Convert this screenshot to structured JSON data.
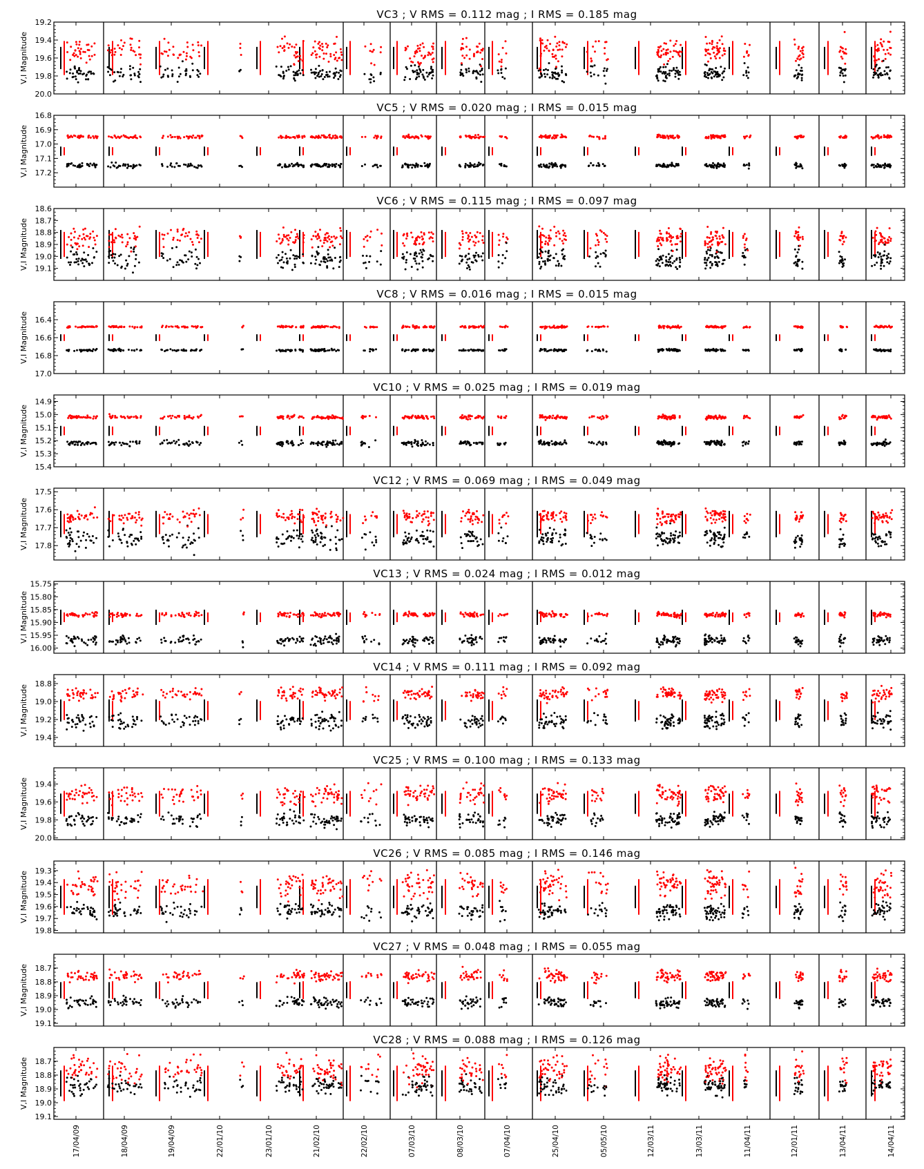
{
  "chart_data": {
    "type": "scatter",
    "x_tick_labels": [
      "17/04/09",
      "18/04/09",
      "19/04/09",
      "22/01/10",
      "23/01/10",
      "21/02/10",
      "22/02/10",
      "07/03/10",
      "08/03/10",
      "07/04/10",
      "25/04/10",
      "05/05/10",
      "12/03/11",
      "13/03/11",
      "11/04/11",
      "12/01/11",
      "13/04/11",
      "14/04/11"
    ],
    "series_colors": {
      "V": "#000000",
      "I": "#ff0000"
    },
    "panels": [
      {
        "title": "VC3 ; V RMS = 0.112 mag ; I RMS = 0.185 mag",
        "ylabel": "V,I Magnitude",
        "yticks": [
          "19.2",
          "19.4",
          "19.6",
          "19.8",
          "20.0"
        ],
        "ylim": [
          20.0,
          19.2
        ],
        "V": {
          "rms": 0.112,
          "mean": 19.77
        },
        "I": {
          "rms": 0.185,
          "mean": 19.52
        }
      },
      {
        "title": "VC5 ; V RMS = 0.020 mag ; I RMS = 0.015 mag",
        "ylabel": "V,I Magnitude",
        "yticks": [
          "16.8",
          "16.9",
          "17.0",
          "17.1",
          "17.2"
        ],
        "ylim": [
          17.3,
          16.8
        ],
        "V": {
          "rms": 0.02,
          "mean": 17.15
        },
        "I": {
          "rms": 0.015,
          "mean": 16.95
        }
      },
      {
        "title": "VC6 ; V RMS = 0.115 mag ; I RMS = 0.097 mag",
        "ylabel": "V,I Magnitude",
        "yticks": [
          "18.6",
          "18.7",
          "18.8",
          "18.9",
          "19.0",
          "19.1"
        ],
        "ylim": [
          19.2,
          18.6
        ],
        "V": {
          "rms": 0.115,
          "mean": 19.02
        },
        "I": {
          "rms": 0.097,
          "mean": 18.85
        }
      },
      {
        "title": "VC8 ; V RMS = 0.016 mag ; I RMS = 0.015 mag",
        "ylabel": "V,I Magnitude",
        "yticks": [
          "16.4",
          "16.6",
          "16.8",
          "17.0"
        ],
        "ylim": [
          17.0,
          16.2
        ],
        "V": {
          "rms": 0.016,
          "mean": 16.74
        },
        "I": {
          "rms": 0.015,
          "mean": 16.48
        }
      },
      {
        "title": "VC10 ; V RMS = 0.025 mag ; I RMS = 0.019 mag",
        "ylabel": "V,I Magnitude",
        "yticks": [
          "14.9",
          "15.0",
          "15.1",
          "15.2",
          "15.3",
          "15.4"
        ],
        "ylim": [
          15.4,
          14.85
        ],
        "V": {
          "rms": 0.025,
          "mean": 15.22
        },
        "I": {
          "rms": 0.019,
          "mean": 15.02
        }
      },
      {
        "title": "VC12 ; V RMS = 0.069 mag ; I RMS = 0.049 mag",
        "ylabel": "V,I Magnitude",
        "yticks": [
          "17.5",
          "17.6",
          "17.7",
          "17.8"
        ],
        "ylim": [
          17.88,
          17.48
        ],
        "V": {
          "rms": 0.069,
          "mean": 17.76
        },
        "I": {
          "rms": 0.049,
          "mean": 17.64
        }
      },
      {
        "title": "VC13 ; V RMS = 0.024 mag ; I RMS = 0.012 mag",
        "ylabel": "V,I Magnitude",
        "yticks": [
          "15.75",
          "15.80",
          "15.85",
          "15.90",
          "15.95",
          "16.00"
        ],
        "ylim": [
          16.02,
          15.74
        ],
        "V": {
          "rms": 0.024,
          "mean": 15.97
        },
        "I": {
          "rms": 0.012,
          "mean": 15.87
        }
      },
      {
        "title": "VC14 ; V RMS = 0.111 mag ; I RMS = 0.092 mag",
        "ylabel": "V,I Magnitude",
        "yticks": [
          "18.8",
          "19.0",
          "19.2",
          "19.4"
        ],
        "ylim": [
          19.5,
          18.7
        ],
        "V": {
          "rms": 0.111,
          "mean": 19.22
        },
        "I": {
          "rms": 0.092,
          "mean": 18.92
        }
      },
      {
        "title": "VC25 ; V RMS = 0.100 mag ; I RMS = 0.133 mag",
        "ylabel": "V,I Magnitude",
        "yticks": [
          "19.4",
          "19.6",
          "19.8",
          "20.0"
        ],
        "ylim": [
          20.02,
          19.22
        ],
        "V": {
          "rms": 0.1,
          "mean": 19.8
        },
        "I": {
          "rms": 0.133,
          "mean": 19.52
        }
      },
      {
        "title": "VC26 ; V RMS = 0.085 mag ; I RMS = 0.146 mag",
        "ylabel": "V,I Magnitude",
        "yticks": [
          "19.3",
          "19.4",
          "19.5",
          "19.6",
          "19.7",
          "19.8"
        ],
        "ylim": [
          19.82,
          19.22
        ],
        "V": {
          "rms": 0.085,
          "mean": 19.64
        },
        "I": {
          "rms": 0.146,
          "mean": 19.42
        }
      },
      {
        "title": "VC27 ; V RMS = 0.048 mag ; I RMS = 0.055 mag",
        "ylabel": "V,I Magnitude",
        "yticks": [
          "18.7",
          "18.8",
          "18.9",
          "19.0",
          "19.1"
        ],
        "ylim": [
          19.12,
          18.6
        ],
        "V": {
          "rms": 0.048,
          "mean": 18.95
        },
        "I": {
          "rms": 0.055,
          "mean": 18.76
        }
      },
      {
        "title": "VC28 ; V RMS = 0.088 mag ; I RMS = 0.126 mag",
        "ylabel": "V,I Magnitude",
        "yticks": [
          "18.7",
          "18.8",
          "18.9",
          "19.0",
          "19.1"
        ],
        "ylim": [
          19.12,
          18.6
        ],
        "V": {
          "rms": 0.088,
          "mean": 18.88
        },
        "I": {
          "rms": 0.126,
          "mean": 18.76
        }
      }
    ]
  }
}
